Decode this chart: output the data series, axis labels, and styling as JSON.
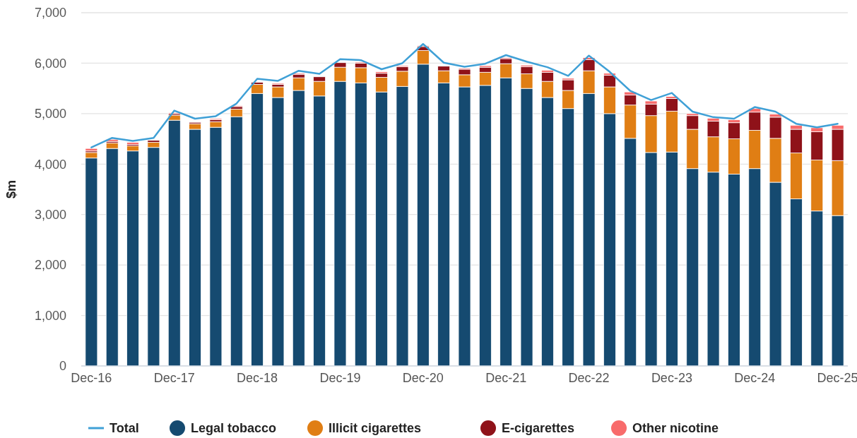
{
  "chart_data": {
    "type": "bar",
    "stacked": true,
    "ylabel": "$m",
    "ylim": [
      0,
      7000
    ],
    "yticks": [
      {
        "value": 0,
        "label": "0"
      },
      {
        "value": 1000,
        "label": "1,000"
      },
      {
        "value": 2000,
        "label": "2,000"
      },
      {
        "value": 3000,
        "label": "3,000"
      },
      {
        "value": 4000,
        "label": "4,000"
      },
      {
        "value": 5000,
        "label": "5,000"
      },
      {
        "value": 6000,
        "label": "6,000"
      },
      {
        "value": 7000,
        "label": "7,000"
      }
    ],
    "grid": "y",
    "legend": "bottom",
    "categories": [
      "Dec-16",
      null,
      null,
      null,
      "Dec-17",
      null,
      null,
      null,
      "Dec-18",
      null,
      null,
      null,
      "Dec-19",
      null,
      null,
      null,
      "Dec-20",
      null,
      null,
      null,
      "Dec-21",
      null,
      null,
      null,
      "Dec-22",
      null,
      null,
      null,
      "Dec-23",
      null,
      null,
      null,
      "Dec-24",
      null,
      null,
      null,
      "Dec-25"
    ],
    "series": [
      {
        "name": "Total",
        "type": "line",
        "color": "#3fa0d6",
        "values": [
          4330,
          4520,
          4460,
          4520,
          5060,
          4900,
          4950,
          5200,
          5690,
          5650,
          5850,
          5790,
          6080,
          6060,
          5880,
          6000,
          6380,
          6010,
          5930,
          5990,
          6160,
          6030,
          5920,
          5750,
          6150,
          5830,
          5450,
          5270,
          5410,
          5040,
          4930,
          4900,
          5130,
          5040,
          4800,
          4730,
          4800
        ]
      },
      {
        "name": "Legal tobacco",
        "color": "#154a70",
        "values": [
          4120,
          4310,
          4260,
          4330,
          4870,
          4690,
          4730,
          4940,
          5400,
          5320,
          5460,
          5350,
          5640,
          5610,
          5430,
          5540,
          5980,
          5610,
          5530,
          5560,
          5710,
          5500,
          5320,
          5100,
          5400,
          5000,
          4510,
          4230,
          4240,
          3910,
          3840,
          3800,
          3910,
          3640,
          3310,
          3070,
          2980
        ]
      },
      {
        "name": "Illicit cigarettes",
        "color": "#e07e14",
        "values": [
          110,
          110,
          100,
          100,
          100,
          110,
          110,
          150,
          180,
          210,
          250,
          290,
          280,
          300,
          290,
          300,
          270,
          240,
          240,
          260,
          280,
          290,
          320,
          360,
          450,
          530,
          660,
          730,
          810,
          780,
          700,
          700,
          760,
          870,
          910,
          1010,
          1090
        ]
      },
      {
        "name": "E-cigarettes",
        "color": "#8f1219",
        "values": [
          30,
          30,
          30,
          40,
          30,
          30,
          40,
          50,
          40,
          50,
          70,
          90,
          90,
          90,
          80,
          90,
          80,
          90,
          110,
          100,
          100,
          140,
          180,
          210,
          220,
          230,
          200,
          230,
          250,
          270,
          310,
          320,
          360,
          420,
          470,
          560,
          620
        ]
      },
      {
        "name": "Other nicotine",
        "color": "#f86b6b",
        "values": [
          50,
          40,
          40,
          null,
          20,
          10,
          20,
          20,
          null,
          20,
          20,
          null,
          null,
          20,
          30,
          20,
          20,
          null,
          20,
          30,
          20,
          30,
          40,
          30,
          40,
          40,
          60,
          60,
          40,
          40,
          60,
          60,
          70,
          60,
          80,
          80,
          80
        ]
      }
    ]
  }
}
